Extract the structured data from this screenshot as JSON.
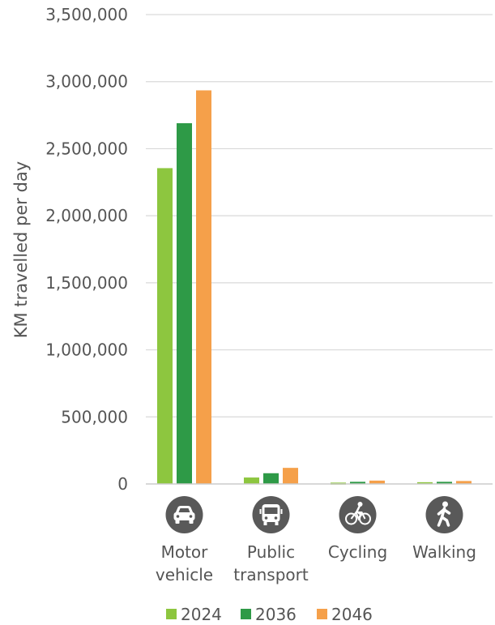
{
  "chart_data": {
    "type": "bar",
    "title": "",
    "xlabel": "",
    "ylabel": "KM travelled per day",
    "ylim": [
      0,
      3500000
    ],
    "yticks": [
      0,
      500000,
      1000000,
      1500000,
      2000000,
      2500000,
      3000000,
      3500000
    ],
    "ytick_labels": [
      "0",
      "500,000",
      "1,000,000",
      "1,500,000",
      "2,000,000",
      "2,500,000",
      "3,000,000",
      "3,500,000"
    ],
    "grid": true,
    "legend_position": "bottom",
    "categories": [
      {
        "lines": [
          "Motor",
          "vehicle"
        ],
        "icon": "car-icon"
      },
      {
        "lines": [
          "Public",
          "transport"
        ],
        "icon": "bus-icon"
      },
      {
        "lines": [
          "Cycling"
        ],
        "icon": "bicycle-icon"
      },
      {
        "lines": [
          "Walking"
        ],
        "icon": "walking-person-icon"
      }
    ],
    "series": [
      {
        "name": "2024",
        "color": "#8dc63f",
        "values": [
          2355000,
          48000,
          10000,
          13000
        ]
      },
      {
        "name": "2036",
        "color": "#2e9a47",
        "values": [
          2690000,
          80000,
          16000,
          16000
        ]
      },
      {
        "name": "2046",
        "color": "#f5a04a",
        "values": [
          2935000,
          120000,
          25000,
          22000
        ]
      }
    ],
    "icon_color": "#595959"
  }
}
